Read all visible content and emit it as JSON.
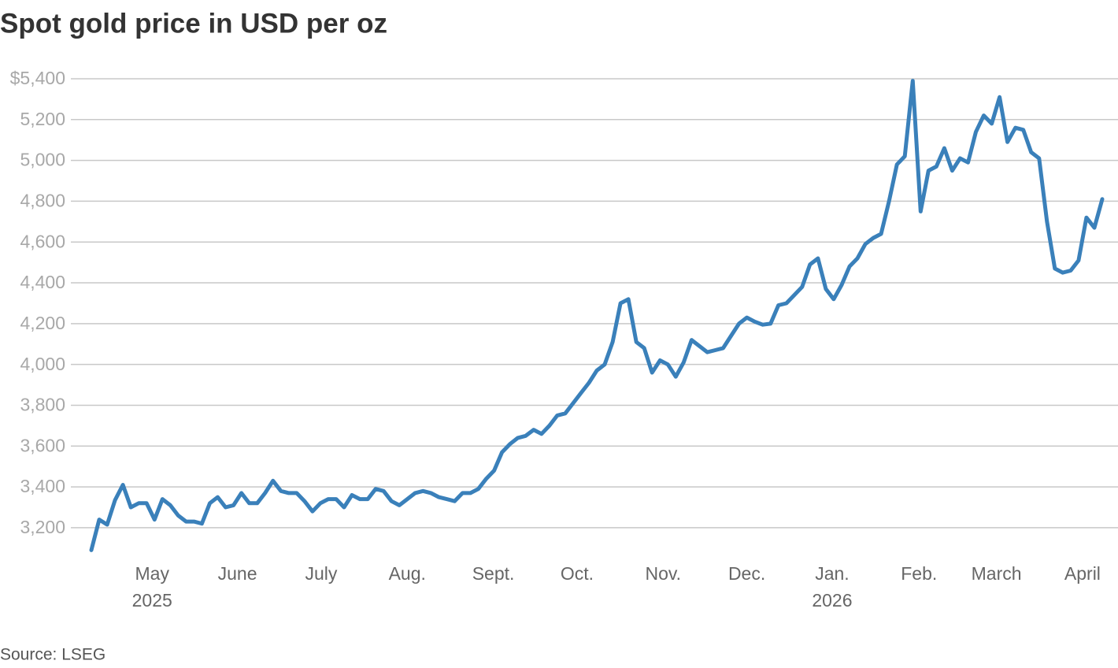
{
  "chart_data": {
    "type": "line",
    "title": "Spot gold price in USD per oz",
    "source": "Source: LSEG",
    "series": [
      {
        "name": "Spot gold",
        "color": "#3a80ba",
        "values": [
          3090,
          3240,
          3215,
          3335,
          3410,
          3300,
          3320,
          3320,
          3240,
          3340,
          3310,
          3260,
          3230,
          3230,
          3220,
          3320,
          3350,
          3300,
          3310,
          3370,
          3320,
          3320,
          3370,
          3430,
          3380,
          3370,
          3370,
          3330,
          3280,
          3320,
          3340,
          3340,
          3300,
          3360,
          3340,
          3340,
          3390,
          3380,
          3330,
          3310,
          3340,
          3370,
          3380,
          3370,
          3350,
          3340,
          3330,
          3370,
          3370,
          3390,
          3440,
          3480,
          3570,
          3610,
          3640,
          3650,
          3680,
          3660,
          3700,
          3750,
          3760,
          3810,
          3860,
          3910,
          3970,
          4000,
          4110,
          4300,
          4320,
          4110,
          4080,
          3960,
          4020,
          4000,
          3940,
          4010,
          4120,
          4090,
          4060,
          4070,
          4080,
          4140,
          4200,
          4230,
          4210,
          4195,
          4200,
          4290,
          4300,
          4340,
          4380,
          4490,
          4520,
          4370,
          4320,
          4390,
          4480,
          4520,
          4590,
          4620,
          4640,
          4800,
          4980,
          5020,
          5390,
          4750,
          4950,
          4970,
          5060,
          4950,
          5010,
          4990,
          5140,
          5220,
          5180,
          5310,
          5090,
          5160,
          5150,
          5040,
          5010,
          4700,
          4470,
          4450,
          4460,
          4510,
          4720,
          4670,
          4810
        ]
      }
    ],
    "xlim": [
      0,
      128
    ],
    "xticks": [
      {
        "value": 7.7,
        "label": "May"
      },
      {
        "value": 18.5,
        "label": "June"
      },
      {
        "value": 29.1,
        "label": "July"
      },
      {
        "value": 40.0,
        "label": "Aug."
      },
      {
        "value": 50.9,
        "label": "Sept."
      },
      {
        "value": 61.5,
        "label": "Oct."
      },
      {
        "value": 72.4,
        "label": "Nov."
      },
      {
        "value": 83.0,
        "label": "Dec."
      },
      {
        "value": 93.8,
        "label": "Jan."
      },
      {
        "value": 104.8,
        "label": "Feb."
      },
      {
        "value": 114.6,
        "label": "March"
      },
      {
        "value": 125.5,
        "label": "April"
      }
    ],
    "year_labels": [
      {
        "value": 7.7,
        "label": "2025"
      },
      {
        "value": 93.8,
        "label": "2026"
      }
    ],
    "ylim": [
      3080,
      5400
    ],
    "yticks": [
      {
        "value": 3200,
        "label": "3,200"
      },
      {
        "value": 3400,
        "label": "3,400"
      },
      {
        "value": 3600,
        "label": "3,600"
      },
      {
        "value": 3800,
        "label": "3,800"
      },
      {
        "value": 4000,
        "label": "4,000"
      },
      {
        "value": 4200,
        "label": "4,200"
      },
      {
        "value": 4400,
        "label": "4,400"
      },
      {
        "value": 4600,
        "label": "4,600"
      },
      {
        "value": 4800,
        "label": "4,800"
      },
      {
        "value": 5000,
        "label": "5,000"
      },
      {
        "value": 5200,
        "label": "5,200"
      },
      {
        "value": 5400,
        "label": "$5,400"
      }
    ],
    "grid": true
  }
}
